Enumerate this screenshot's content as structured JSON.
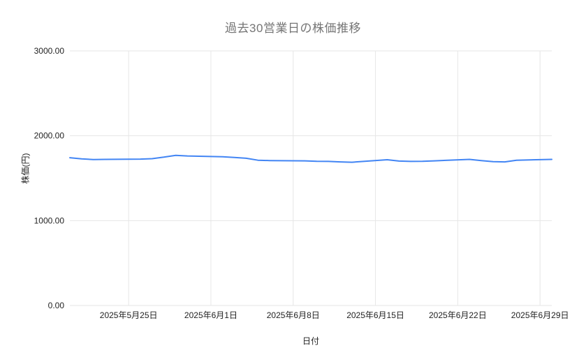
{
  "chart_data": {
    "type": "line",
    "title": "過去30営業日の株価推移",
    "xlabel": "日付",
    "ylabel": "株価(円)",
    "ylim": [
      0,
      3000
    ],
    "grid": true,
    "legend": false,
    "colors": {
      "line": "#4285f4",
      "grid": "#e6e6e6",
      "title": "#757575",
      "tick_text": "#222222",
      "background": "#ffffff"
    },
    "y_ticks": [
      {
        "value": 0,
        "label": "0.00"
      },
      {
        "value": 1000,
        "label": "1000.00"
      },
      {
        "value": 2000,
        "label": "2000.00"
      },
      {
        "value": 3000,
        "label": "3000.00"
      }
    ],
    "x_ticks": [
      {
        "date": "2025-05-25",
        "label": "2025年5月25日"
      },
      {
        "date": "2025-06-01",
        "label": "2025年6月1日"
      },
      {
        "date": "2025-06-08",
        "label": "2025年6月8日"
      },
      {
        "date": "2025-06-15",
        "label": "2025年6月15日"
      },
      {
        "date": "2025-06-22",
        "label": "2025年6月22日"
      },
      {
        "date": "2025-06-29",
        "label": "2025年6月29日"
      }
    ],
    "series": [
      {
        "name": "株価",
        "x": [
          "2025-05-20",
          "2025-05-21",
          "2025-05-22",
          "2025-05-23",
          "2025-05-26",
          "2025-05-27",
          "2025-05-28",
          "2025-05-29",
          "2025-05-30",
          "2025-06-02",
          "2025-06-03",
          "2025-06-04",
          "2025-06-05",
          "2025-06-06",
          "2025-06-09",
          "2025-06-10",
          "2025-06-11",
          "2025-06-12",
          "2025-06-13",
          "2025-06-16",
          "2025-06-17",
          "2025-06-18",
          "2025-06-19",
          "2025-06-20",
          "2025-06-23",
          "2025-06-24",
          "2025-06-25",
          "2025-06-26",
          "2025-06-27",
          "2025-06-30"
        ],
        "values": [
          1742,
          1728,
          1720,
          1722,
          1725,
          1730,
          1748,
          1770,
          1762,
          1752,
          1745,
          1735,
          1712,
          1708,
          1705,
          1700,
          1698,
          1692,
          1688,
          1718,
          1702,
          1698,
          1700,
          1705,
          1722,
          1708,
          1695,
          1692,
          1712,
          1722
        ]
      }
    ]
  }
}
